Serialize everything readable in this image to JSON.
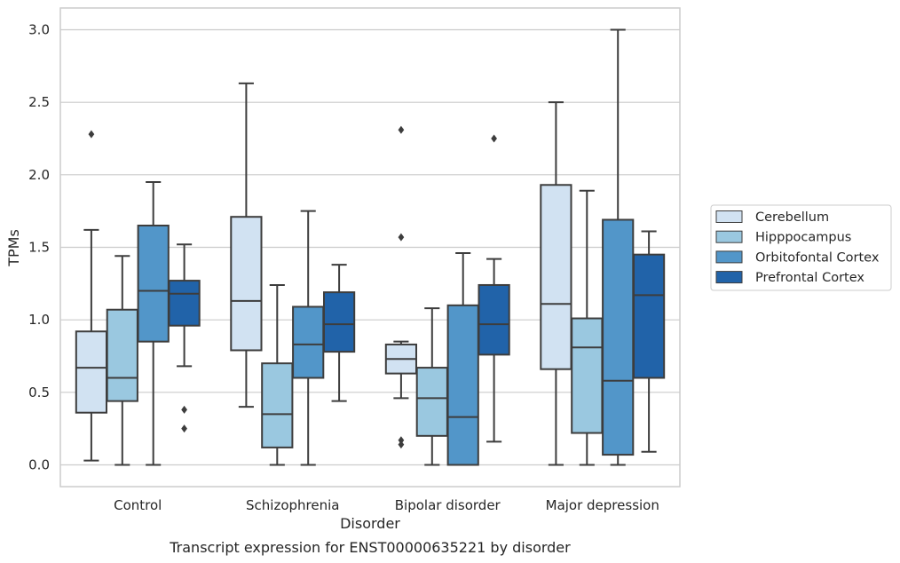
{
  "chart_data": {
    "type": "boxplot",
    "xlabel": "Disorder",
    "ylabel": "TPMs",
    "caption": "Transcript expression for ENST00000635221 by disorder",
    "ylim": [
      -0.15,
      3.15
    ],
    "yticks": [
      "0.0",
      "0.5",
      "1.0",
      "1.5",
      "2.0",
      "2.5",
      "3.0"
    ],
    "grid": "horizontal",
    "legend_position": "right",
    "categories": [
      "Control",
      "Schizophrenia",
      "Bipolar disorder",
      "Major depression"
    ],
    "series": [
      {
        "name": "Cerebellum",
        "color": "#d1e2f2",
        "boxes": [
          {
            "whislo": 0.03,
            "q1": 0.36,
            "med": 0.67,
            "q3": 0.92,
            "whishi": 1.62,
            "fliers": [
              2.28
            ]
          },
          {
            "whislo": 0.4,
            "q1": 0.79,
            "med": 1.13,
            "q3": 1.71,
            "whishi": 2.63,
            "fliers": []
          },
          {
            "whislo": 0.46,
            "q1": 0.63,
            "med": 0.73,
            "q3": 0.83,
            "whishi": 0.85,
            "fliers": [
              2.31,
              1.57,
              0.17,
              0.14
            ]
          },
          {
            "whislo": 0.0,
            "q1": 0.66,
            "med": 1.11,
            "q3": 1.93,
            "whishi": 2.5,
            "fliers": []
          }
        ]
      },
      {
        "name": "Hipppocampus",
        "color": "#9ac8e0",
        "boxes": [
          {
            "whislo": 0.0,
            "q1": 0.44,
            "med": 0.6,
            "q3": 1.07,
            "whishi": 1.44,
            "fliers": []
          },
          {
            "whislo": 0.0,
            "q1": 0.12,
            "med": 0.35,
            "q3": 0.7,
            "whishi": 1.24,
            "fliers": []
          },
          {
            "whislo": 0.0,
            "q1": 0.2,
            "med": 0.46,
            "q3": 0.67,
            "whishi": 1.08,
            "fliers": []
          },
          {
            "whislo": 0.0,
            "q1": 0.22,
            "med": 0.81,
            "q3": 1.01,
            "whishi": 1.89,
            "fliers": []
          }
        ]
      },
      {
        "name": "Orbitofontal Cortex",
        "color": "#5296c9",
        "boxes": [
          {
            "whislo": 0.0,
            "q1": 0.85,
            "med": 1.2,
            "q3": 1.65,
            "whishi": 1.95,
            "fliers": []
          },
          {
            "whislo": 0.0,
            "q1": 0.6,
            "med": 0.83,
            "q3": 1.09,
            "whishi": 1.75,
            "fliers": []
          },
          {
            "whislo": 0.0,
            "q1": 0.0,
            "med": 0.33,
            "q3": 1.1,
            "whishi": 1.46,
            "fliers": []
          },
          {
            "whislo": 0.0,
            "q1": 0.07,
            "med": 0.58,
            "q3": 1.69,
            "whishi": 3.0,
            "fliers": []
          }
        ]
      },
      {
        "name": "Prefrontal Cortex",
        "color": "#2163a9",
        "boxes": [
          {
            "whislo": 0.68,
            "q1": 0.96,
            "med": 1.18,
            "q3": 1.27,
            "whishi": 1.52,
            "fliers": [
              0.38,
              0.25
            ]
          },
          {
            "whislo": 0.44,
            "q1": 0.78,
            "med": 0.97,
            "q3": 1.19,
            "whishi": 1.38,
            "fliers": []
          },
          {
            "whislo": 0.16,
            "q1": 0.76,
            "med": 0.97,
            "q3": 1.24,
            "whishi": 1.42,
            "fliers": [
              2.25
            ]
          },
          {
            "whislo": 0.09,
            "q1": 0.6,
            "med": 1.17,
            "q3": 1.45,
            "whishi": 1.61,
            "fliers": []
          }
        ]
      }
    ]
  }
}
